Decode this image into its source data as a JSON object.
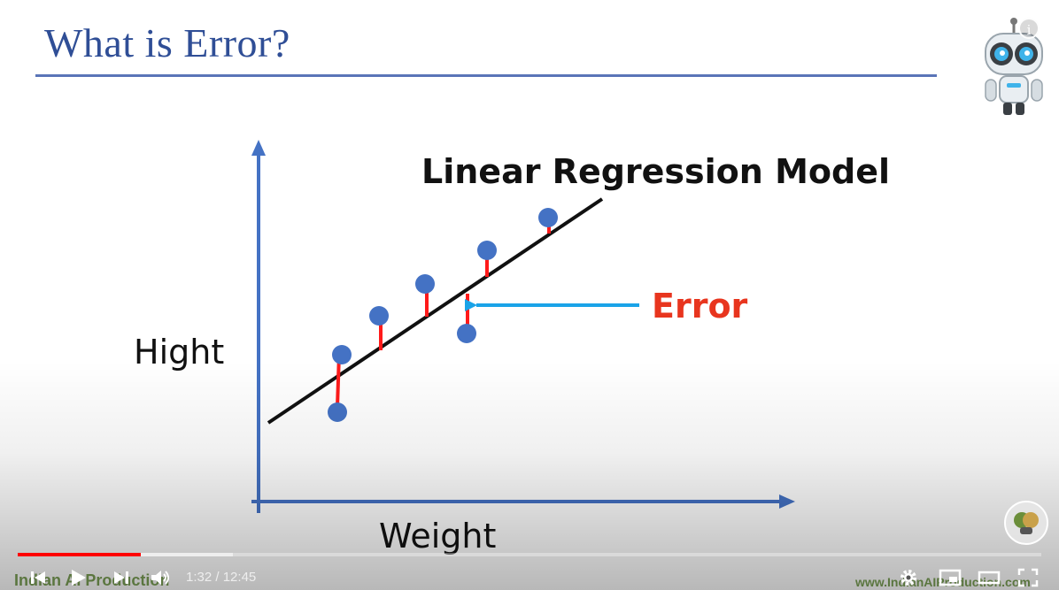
{
  "slide": {
    "title": "What is Error?",
    "diagram_title": "Linear Regression Model",
    "y_axis_label": "Hight",
    "x_axis_label": "Weight",
    "error_label": "Error"
  },
  "colors": {
    "title": "#2f4e96",
    "axis": "#4472c4",
    "points": "#4472c4",
    "error_lines": "#ff1a1a",
    "error_label": "#e8351e",
    "pointer_arrow": "#1aa3e8",
    "progress_played": "#ff0000"
  },
  "watermarks": {
    "left": "Indian AI Production",
    "right": "www.IndianAIProduction.com"
  },
  "player": {
    "current_time": "1:32",
    "separator": " / ",
    "duration": "12:45",
    "progress_fraction": 0.12,
    "buffered_fraction": 0.21,
    "icons": {
      "prev": "skip-previous-icon",
      "play": "play-icon",
      "next": "skip-next-icon",
      "volume": "volume-icon",
      "settings": "gear-icon",
      "miniplayer": "miniplayer-icon",
      "theater": "theater-mode-icon",
      "fullscreen": "fullscreen-icon",
      "info": "info-icon"
    }
  }
}
